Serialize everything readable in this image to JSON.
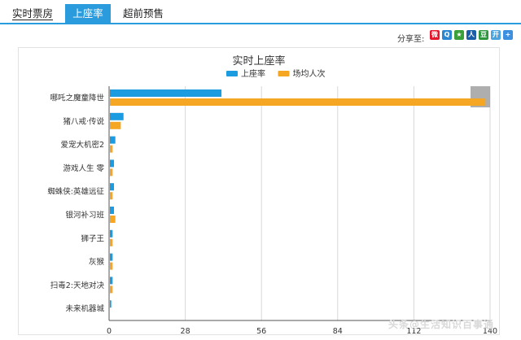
{
  "tabs": [
    {
      "label": "实时票房",
      "active": false
    },
    {
      "label": "上座率",
      "active": true
    },
    {
      "label": "超前预售",
      "active": false
    }
  ],
  "share": {
    "label": "分享至:",
    "icons": [
      {
        "name": "weibo-icon",
        "color": "#e6162d",
        "glyph": "微"
      },
      {
        "name": "qzone-icon",
        "color": "#2b87d1",
        "glyph": "Q"
      },
      {
        "name": "star-icon",
        "color": "#3aa03a",
        "glyph": "★"
      },
      {
        "name": "renren-icon",
        "color": "#1a5da8",
        "glyph": "人"
      },
      {
        "name": "douban-icon",
        "color": "#2e963d",
        "glyph": "豆"
      },
      {
        "name": "kaixin-icon",
        "color": "#4aa3df",
        "glyph": "开"
      },
      {
        "name": "more-icon",
        "color": "#3d8fe0",
        "glyph": "+"
      }
    ]
  },
  "chart_data": {
    "type": "bar",
    "orientation": "horizontal",
    "title": "实时上座率",
    "categories": [
      "哪吒之魔童降世",
      "猪八戒·传说",
      "爱宠大机密2",
      "游戏人生 零",
      "蜘蛛侠:英雄远征",
      "银河补习班",
      "狮子王",
      "灰猴",
      "扫毒2:天地对决",
      "未来机器城"
    ],
    "series": [
      {
        "name": "上座率",
        "color": "#1b9be0",
        "values": [
          41,
          5,
          2,
          1.5,
          1.5,
          1.5,
          1,
          1,
          1,
          0.5
        ]
      },
      {
        "name": "场均人次",
        "color": "#f5a623",
        "values": [
          138,
          4,
          1,
          1,
          1,
          2,
          1,
          1,
          1,
          0
        ]
      }
    ],
    "xlim": [
      0,
      140
    ],
    "xticks": [
      0,
      28,
      56,
      84,
      112,
      140
    ],
    "grid": true,
    "legend_position": "top-center"
  },
  "watermark": "头条@生活知识百事通"
}
